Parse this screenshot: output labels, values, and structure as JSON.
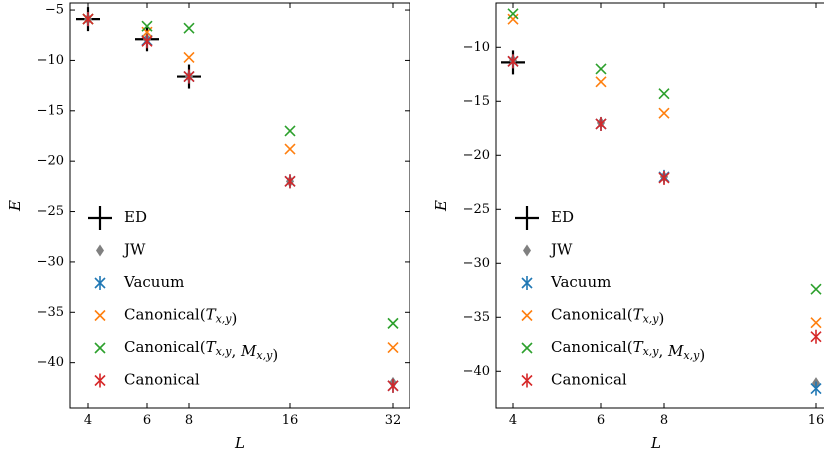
{
  "chart_data": [
    {
      "type": "scatter",
      "xlabel": "L",
      "ylabel": "E",
      "x_ticks": [
        "4",
        "6",
        "8",
        "16",
        "32"
      ],
      "y_ticks": [
        "−5",
        "−10",
        "−15",
        "−20",
        "−25",
        "−30",
        "−35",
        "−40"
      ],
      "ylim": [
        -44.5,
        -4.3
      ],
      "x_axis": "categorical-like L positions",
      "legend_position": "lower-left",
      "series": [
        {
          "name": "ED",
          "marker": "plus",
          "color": "#000000",
          "points": [
            {
              "x": "4",
              "y": -5.9
            },
            {
              "x": "6",
              "y": -7.9
            },
            {
              "x": "8",
              "y": -11.6
            }
          ]
        },
        {
          "name": "JW",
          "marker": "diamond",
          "color": "#808080",
          "points": [
            {
              "x": "4",
              "y": -5.9
            },
            {
              "x": "6",
              "y": -7.9
            },
            {
              "x": "8",
              "y": -11.6
            },
            {
              "x": "16",
              "y": -22.0
            },
            {
              "x": "32",
              "y": -42.0
            }
          ]
        },
        {
          "name": "Vacuum",
          "marker": "asterisk",
          "color": "#1f77b4",
          "points": [
            {
              "x": "4",
              "y": -5.9
            },
            {
              "x": "6",
              "y": -8.0
            },
            {
              "x": "8",
              "y": -11.6
            },
            {
              "x": "16",
              "y": -22.0
            },
            {
              "x": "32",
              "y": -42.3
            }
          ]
        },
        {
          "name": "Canonical(T_{x,y})",
          "marker": "x",
          "color": "#ff7f0e",
          "points": [
            {
              "x": "4",
              "y": -5.9
            },
            {
              "x": "6",
              "y": -7.2
            },
            {
              "x": "8",
              "y": -9.7
            },
            {
              "x": "16",
              "y": -18.8
            },
            {
              "x": "32",
              "y": -38.5
            }
          ]
        },
        {
          "name": "Canonical(T_{x,y}, M_{x,y})",
          "marker": "x",
          "color": "#2ca02c",
          "points": [
            {
              "x": "4",
              "y": -5.9
            },
            {
              "x": "6",
              "y": -6.6
            },
            {
              "x": "8",
              "y": -6.8
            },
            {
              "x": "16",
              "y": -17.0
            },
            {
              "x": "32",
              "y": -36.1
            }
          ]
        },
        {
          "name": "Canonical",
          "marker": "asterisk",
          "color": "#d62728",
          "points": [
            {
              "x": "4",
              "y": -5.9
            },
            {
              "x": "6",
              "y": -8.1
            },
            {
              "x": "8",
              "y": -11.6
            },
            {
              "x": "16",
              "y": -22.0
            },
            {
              "x": "32",
              "y": -42.3
            }
          ]
        }
      ]
    },
    {
      "type": "scatter",
      "xlabel": "L",
      "ylabel": "E",
      "x_ticks": [
        "4",
        "6",
        "8",
        "16"
      ],
      "y_ticks": [
        "−10",
        "−15",
        "−20",
        "−25",
        "−30",
        "−35",
        "−40"
      ],
      "ylim": [
        -43.4,
        -5.9
      ],
      "x_axis": "categorical-like L positions",
      "legend_position": "lower-left",
      "series": [
        {
          "name": "ED",
          "marker": "plus",
          "color": "#000000",
          "points": [
            {
              "x": "4",
              "y": -11.4
            }
          ]
        },
        {
          "name": "JW",
          "marker": "diamond",
          "color": "#808080",
          "points": [
            {
              "x": "4",
              "y": -11.2
            },
            {
              "x": "6",
              "y": -17.0
            },
            {
              "x": "8",
              "y": -22.0
            },
            {
              "x": "16",
              "y": -41.1
            }
          ]
        },
        {
          "name": "Vacuum",
          "marker": "asterisk",
          "color": "#1f77b4",
          "points": [
            {
              "x": "4",
              "y": -11.3
            },
            {
              "x": "6",
              "y": -17.1
            },
            {
              "x": "8",
              "y": -22.0
            },
            {
              "x": "16",
              "y": -41.6
            }
          ]
        },
        {
          "name": "Canonical(T_{x,y})",
          "marker": "x",
          "color": "#ff7f0e",
          "points": [
            {
              "x": "4",
              "y": -7.4
            },
            {
              "x": "6",
              "y": -13.2
            },
            {
              "x": "8",
              "y": -16.1
            },
            {
              "x": "16",
              "y": -35.5
            }
          ]
        },
        {
          "name": "Canonical(T_{x,y}, M_{x,y})",
          "marker": "x",
          "color": "#2ca02c",
          "points": [
            {
              "x": "4",
              "y": -6.9
            },
            {
              "x": "6",
              "y": -12.0
            },
            {
              "x": "8",
              "y": -14.3
            },
            {
              "x": "16",
              "y": -32.4
            }
          ]
        },
        {
          "name": "Canonical",
          "marker": "asterisk",
          "color": "#d62728",
          "points": [
            {
              "x": "4",
              "y": -11.3
            },
            {
              "x": "6",
              "y": -17.1
            },
            {
              "x": "8",
              "y": -22.1
            },
            {
              "x": "16",
              "y": -36.8
            }
          ]
        }
      ]
    }
  ]
}
